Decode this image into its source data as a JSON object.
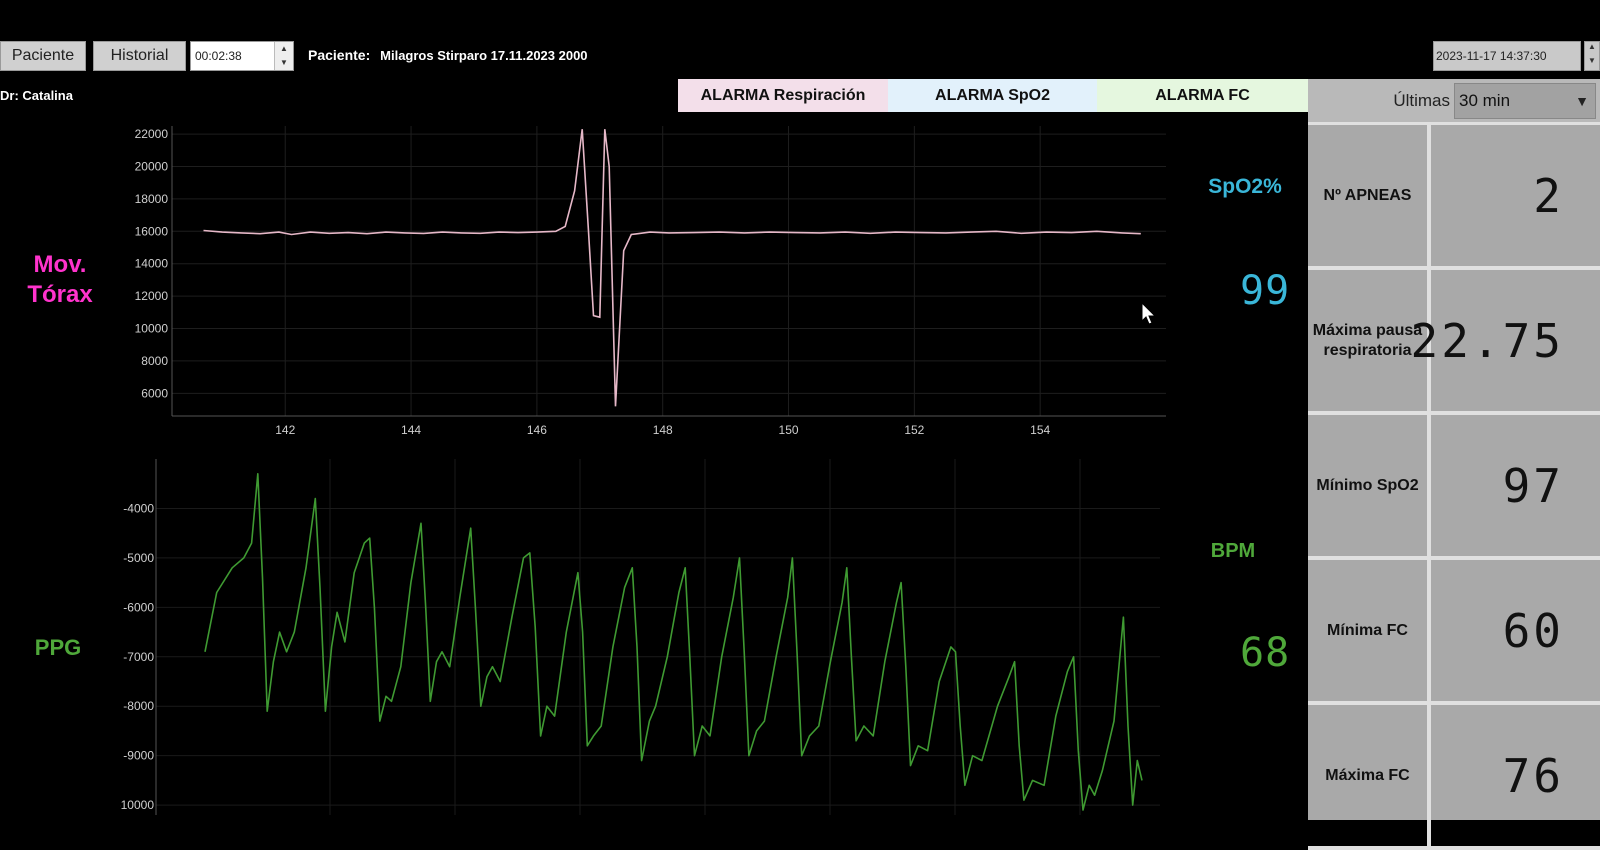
{
  "toolbar": {
    "paciente_button": "Paciente",
    "historial_button": "Historial",
    "timer_value": "00:02:38",
    "patient_label": "Paciente:",
    "patient_name": "Milagros Stirparo 17.11.2023 2000",
    "datetime_value": "2023-11-17 14:37:30"
  },
  "doctor": "Dr: Catalina",
  "alarms": {
    "respiracion": "ALARMA Respiración",
    "spo2": "ALARMA SpO2",
    "fc": "ALARMA FC"
  },
  "colors": {
    "alarm_respiracion": "#f3dfea",
    "alarm_spo2": "#e2f1fb",
    "alarm_fc": "#e5f7df",
    "torax": "#ff33cc",
    "spo2": "#3ab6d8",
    "ppg": "#4fa83a",
    "torax_line": "#e6b8c8",
    "ppg_line": "#3f9a32"
  },
  "labels": {
    "mov": "Mov.",
    "torax": "Tórax",
    "ppg": "PPG",
    "spo2_title": "SpO2%",
    "bpm_title": "BPM"
  },
  "readings": {
    "spo2": "99",
    "bpm": "68"
  },
  "panel": {
    "ultimas_label": "Últimas",
    "ultimas_value": "30 min",
    "stats": [
      {
        "label": "Nº APNEAS",
        "value": "2"
      },
      {
        "label": "Máxima pausa respiratoria",
        "value": "22.75"
      },
      {
        "label": "Mínimo SpO2",
        "value": "97"
      },
      {
        "label": "Mínima FC",
        "value": "60"
      },
      {
        "label": "Máxima FC",
        "value": "76"
      }
    ]
  },
  "chart_data": [
    {
      "type": "line",
      "xlim": [
        140.2,
        156.0
      ],
      "ylim": [
        4600,
        22500
      ],
      "xticks": [
        142,
        144,
        146,
        148,
        150,
        152,
        154
      ],
      "yticks": [
        6000,
        8000,
        10000,
        12000,
        14000,
        16000,
        18000,
        20000,
        22000
      ],
      "series": [
        {
          "values": [
            [
              140.7,
              16050
            ],
            [
              141.0,
              15950
            ],
            [
              141.3,
              15900
            ],
            [
              141.6,
              15850
            ],
            [
              141.9,
              15950
            ],
            [
              142.1,
              15800
            ],
            [
              142.4,
              15950
            ],
            [
              142.7,
              15880
            ],
            [
              143.0,
              15920
            ],
            [
              143.3,
              15850
            ],
            [
              143.6,
              15950
            ],
            [
              143.9,
              15900
            ],
            [
              144.2,
              15870
            ],
            [
              144.5,
              15950
            ],
            [
              144.8,
              15900
            ],
            [
              145.1,
              15880
            ],
            [
              145.4,
              15950
            ],
            [
              145.7,
              15920
            ],
            [
              146.0,
              15950
            ],
            [
              146.3,
              16000
            ],
            [
              146.45,
              16300
            ],
            [
              146.6,
              18500
            ],
            [
              146.72,
              22300
            ],
            [
              146.82,
              16000
            ],
            [
              146.9,
              10800
            ],
            [
              147.0,
              10700
            ],
            [
              147.08,
              22300
            ],
            [
              147.15,
              20000
            ],
            [
              147.25,
              5200
            ],
            [
              147.38,
              14800
            ],
            [
              147.5,
              15800
            ],
            [
              147.8,
              15950
            ],
            [
              148.1,
              15900
            ],
            [
              148.5,
              15920
            ],
            [
              148.9,
              15950
            ],
            [
              149.3,
              15900
            ],
            [
              149.7,
              15950
            ],
            [
              150.1,
              15920
            ],
            [
              150.5,
              15900
            ],
            [
              150.9,
              15950
            ],
            [
              151.3,
              15880
            ],
            [
              151.7,
              15950
            ],
            [
              152.1,
              15920
            ],
            [
              152.5,
              15900
            ],
            [
              152.9,
              15950
            ],
            [
              153.3,
              16000
            ],
            [
              153.7,
              15880
            ],
            [
              154.1,
              15950
            ],
            [
              154.5,
              15920
            ],
            [
              154.9,
              16000
            ],
            [
              155.3,
              15900
            ],
            [
              155.6,
              15850
            ]
          ]
        }
      ]
    },
    {
      "type": "line",
      "ylim": [
        -10200,
        -3000
      ],
      "yticks": [
        -4000,
        -5000,
        -6000,
        -7000,
        -8000,
        -9000,
        -10000
      ],
      "series": [
        {
          "values": [
            [
              0.0,
              -6900
            ],
            [
              0.15,
              -5700
            ],
            [
              0.35,
              -5200
            ],
            [
              0.5,
              -5000
            ],
            [
              0.6,
              -4700
            ],
            [
              0.68,
              -3300
            ],
            [
              0.74,
              -5400
            ],
            [
              0.8,
              -8100
            ],
            [
              0.88,
              -7100
            ],
            [
              0.96,
              -6500
            ],
            [
              1.05,
              -6900
            ],
            [
              1.15,
              -6500
            ],
            [
              1.3,
              -5200
            ],
            [
              1.42,
              -3800
            ],
            [
              1.48,
              -5600
            ],
            [
              1.55,
              -8100
            ],
            [
              1.63,
              -6800
            ],
            [
              1.7,
              -6100
            ],
            [
              1.8,
              -6700
            ],
            [
              1.92,
              -5300
            ],
            [
              2.05,
              -4700
            ],
            [
              2.12,
              -4600
            ],
            [
              2.18,
              -6000
            ],
            [
              2.25,
              -8300
            ],
            [
              2.33,
              -7800
            ],
            [
              2.4,
              -7900
            ],
            [
              2.52,
              -7200
            ],
            [
              2.65,
              -5500
            ],
            [
              2.78,
              -4300
            ],
            [
              2.84,
              -6000
            ],
            [
              2.9,
              -7900
            ],
            [
              2.98,
              -7100
            ],
            [
              3.05,
              -6900
            ],
            [
              3.15,
              -7200
            ],
            [
              3.28,
              -5800
            ],
            [
              3.42,
              -4400
            ],
            [
              3.48,
              -6000
            ],
            [
              3.55,
              -8000
            ],
            [
              3.63,
              -7400
            ],
            [
              3.7,
              -7200
            ],
            [
              3.8,
              -7500
            ],
            [
              3.95,
              -6200
            ],
            [
              4.1,
              -5000
            ],
            [
              4.18,
              -4900
            ],
            [
              4.25,
              -6400
            ],
            [
              4.32,
              -8600
            ],
            [
              4.4,
              -8000
            ],
            [
              4.5,
              -8200
            ],
            [
              4.65,
              -6500
            ],
            [
              4.8,
              -5300
            ],
            [
              4.86,
              -6500
            ],
            [
              4.92,
              -8800
            ],
            [
              5.0,
              -8600
            ],
            [
              5.1,
              -8400
            ],
            [
              5.25,
              -6800
            ],
            [
              5.4,
              -5600
            ],
            [
              5.5,
              -5200
            ],
            [
              5.56,
              -6800
            ],
            [
              5.62,
              -9100
            ],
            [
              5.72,
              -8300
            ],
            [
              5.8,
              -8000
            ],
            [
              5.95,
              -7000
            ],
            [
              6.1,
              -5700
            ],
            [
              6.18,
              -5200
            ],
            [
              6.24,
              -7000
            ],
            [
              6.3,
              -9000
            ],
            [
              6.4,
              -8400
            ],
            [
              6.5,
              -8600
            ],
            [
              6.65,
              -7000
            ],
            [
              6.8,
              -5800
            ],
            [
              6.88,
              -5000
            ],
            [
              6.94,
              -6900
            ],
            [
              7.0,
              -9000
            ],
            [
              7.1,
              -8500
            ],
            [
              7.2,
              -8300
            ],
            [
              7.35,
              -7000
            ],
            [
              7.5,
              -5800
            ],
            [
              7.56,
              -5000
            ],
            [
              7.62,
              -6900
            ],
            [
              7.68,
              -9000
            ],
            [
              7.78,
              -8600
            ],
            [
              7.9,
              -8400
            ],
            [
              8.05,
              -7100
            ],
            [
              8.2,
              -5900
            ],
            [
              8.26,
              -5200
            ],
            [
              8.32,
              -7000
            ],
            [
              8.38,
              -8700
            ],
            [
              8.48,
              -8400
            ],
            [
              8.6,
              -8600
            ],
            [
              8.75,
              -7100
            ],
            [
              8.9,
              -5900
            ],
            [
              8.96,
              -5500
            ],
            [
              9.02,
              -7200
            ],
            [
              9.08,
              -9200
            ],
            [
              9.18,
              -8800
            ],
            [
              9.3,
              -8900
            ],
            [
              9.45,
              -7500
            ],
            [
              9.6,
              -6800
            ],
            [
              9.66,
              -6900
            ],
            [
              9.72,
              -8400
            ],
            [
              9.78,
              -9600
            ],
            [
              9.88,
              -9000
            ],
            [
              10.0,
              -9100
            ],
            [
              10.2,
              -8000
            ],
            [
              10.35,
              -7400
            ],
            [
              10.42,
              -7100
            ],
            [
              10.48,
              -8800
            ],
            [
              10.54,
              -9900
            ],
            [
              10.65,
              -9500
            ],
            [
              10.8,
              -9600
            ],
            [
              10.95,
              -8200
            ],
            [
              11.1,
              -7300
            ],
            [
              11.18,
              -7000
            ],
            [
              11.24,
              -8900
            ],
            [
              11.3,
              -10100
            ],
            [
              11.38,
              -9600
            ],
            [
              11.45,
              -9800
            ],
            [
              11.55,
              -9300
            ],
            [
              11.7,
              -8300
            ],
            [
              11.82,
              -6200
            ],
            [
              11.88,
              -8400
            ],
            [
              11.94,
              -10000
            ],
            [
              12.0,
              -9100
            ],
            [
              12.06,
              -9500
            ]
          ]
        }
      ]
    }
  ]
}
